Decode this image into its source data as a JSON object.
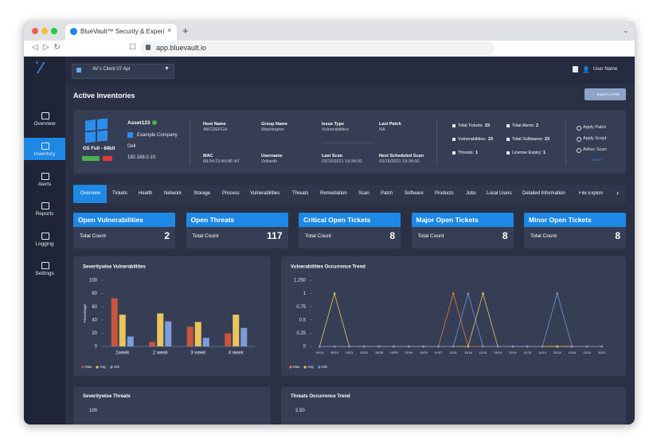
{
  "browser": {
    "tab_title": "BlueVault™ Security & Experien",
    "url": "app.bluevault.io"
  },
  "topbar": {
    "client": "AV's Client 07 Apr",
    "user": "User Name"
  },
  "nav": [
    "Overview",
    "Inventory",
    "Alerts",
    "Reports",
    "Logging",
    "Settings"
  ],
  "page_title": "Active Inventories",
  "export_button": "Export to PDF",
  "asset": {
    "name": "Asset123",
    "company": "Example Company",
    "vendor": "Dell",
    "ip": "192.168.0.10",
    "os": "OS Full - 64bit",
    "fields": [
      {
        "label": "Host Name",
        "value": "ABCDEFGH"
      },
      {
        "label": "Group Name",
        "value": "Washington"
      },
      {
        "label": "Issue Type",
        "value": "Vulnerabilities"
      },
      {
        "label": "Last Patch",
        "value": "NA"
      },
      {
        "label": "MAC",
        "value": "68:94:23:A6:8F:A7"
      },
      {
        "label": "Username",
        "value": "Srikanth"
      },
      {
        "label": "Last Scan",
        "value": "03/15/2021 19:34:00"
      },
      {
        "label": "Next Scheduled Scan",
        "value": "03/15/2021 19:34:00"
      }
    ],
    "stats": [
      {
        "label": "Total Tickets:",
        "value": 23
      },
      {
        "label": "Total Alerts:",
        "value": 2
      },
      {
        "label": "Vulnerabilities:",
        "value": 23
      },
      {
        "label": "Total Softwares:",
        "value": 23
      },
      {
        "label": "Threats:",
        "value": 1
      },
      {
        "label": "License Expiry:",
        "value": 1
      }
    ],
    "actions": [
      "Apply Patch",
      "Apply Script",
      "Adhoc Scan"
    ],
    "more": "more >"
  },
  "tabs": [
    "Overview",
    "Tickets",
    "Health",
    "Network",
    "Storage",
    "Process",
    "Vulnerabilities",
    "Threats",
    "Remediation",
    "Scan",
    "Patch",
    "Software",
    "Products",
    "Jobs",
    "Local Users",
    "Detailed Information",
    "File Explorer"
  ],
  "summary": [
    {
      "title": "Open Vulnerabilities",
      "label": "Total Count",
      "count": 2
    },
    {
      "title": "Open Threats",
      "label": "Total Count",
      "count": 117
    },
    {
      "title": "Critical Open Tickets",
      "label": "Total Count",
      "count": 8
    },
    {
      "title": "Major Open Tickets",
      "label": "Total Count",
      "count": 8
    },
    {
      "title": "Minor Open Tickets",
      "label": "Total Count",
      "count": 8
    }
  ],
  "chart_data": [
    {
      "type": "bar",
      "title": "Severitywise Vulnerabilities",
      "y_label": "Percentage",
      "categories": [
        "1week",
        "2 week",
        "3 week",
        "4 week"
      ],
      "series": [
        {
          "name": "Max",
          "color": "#c8553f",
          "values": [
            73,
            7,
            30,
            20
          ]
        },
        {
          "name": "Avg",
          "color": "#e9c55c",
          "values": [
            48,
            50,
            37,
            48
          ]
        },
        {
          "name": "Min",
          "color": "#7c9ddb",
          "values": [
            15,
            38,
            13,
            28
          ]
        }
      ],
      "ylim": [
        0,
        100
      ],
      "yticks": [
        0,
        20,
        40,
        60,
        80,
        100
      ],
      "grid": false,
      "legend": "bottom-left"
    },
    {
      "type": "line",
      "title": "Vulnerabilities Occurrence Trend",
      "categories": [
        "10/14",
        "10/14",
        "10/21",
        "10/21",
        "10/28",
        "10/30",
        "11/04",
        "11/04",
        "11/07",
        "11/11",
        "11/14",
        "11/14",
        "11/14",
        "11/14",
        "11/14",
        "11/14",
        "11/14",
        "11/14",
        "11/14",
        "11/21"
      ],
      "series": [
        {
          "name": "Max",
          "color": "#e07a3c",
          "values": [
            0,
            0,
            0,
            0,
            0,
            0,
            0,
            0,
            0,
            1,
            0,
            0,
            0,
            0,
            0,
            0,
            0,
            0,
            0,
            0
          ]
        },
        {
          "name": "Avg",
          "color": "#e9c55c",
          "values": [
            0,
            1,
            0,
            0,
            0,
            0,
            0,
            0,
            0,
            0,
            0,
            1,
            0,
            0,
            0,
            0,
            0,
            0,
            0,
            0
          ]
        },
        {
          "name": "Min",
          "color": "#6f95dc",
          "values": [
            0,
            0,
            0,
            0,
            0,
            0,
            0,
            0,
            0,
            0,
            1,
            0,
            0,
            0,
            0,
            0,
            1,
            0,
            0,
            0
          ]
        }
      ],
      "ylim": [
        0,
        1.25
      ],
      "yticks": [
        0,
        0.25,
        0.5,
        0.75,
        1,
        {
          "value": 1.25,
          "label": "1.250"
        }
      ],
      "grid": false,
      "legend": "bottom-left"
    }
  ],
  "bottom_panels": [
    {
      "title": "Severitywise Threats",
      "top_tick": "100"
    },
    {
      "title": "Threats Occurrence Trend",
      "top_tick": "2.50"
    }
  ]
}
